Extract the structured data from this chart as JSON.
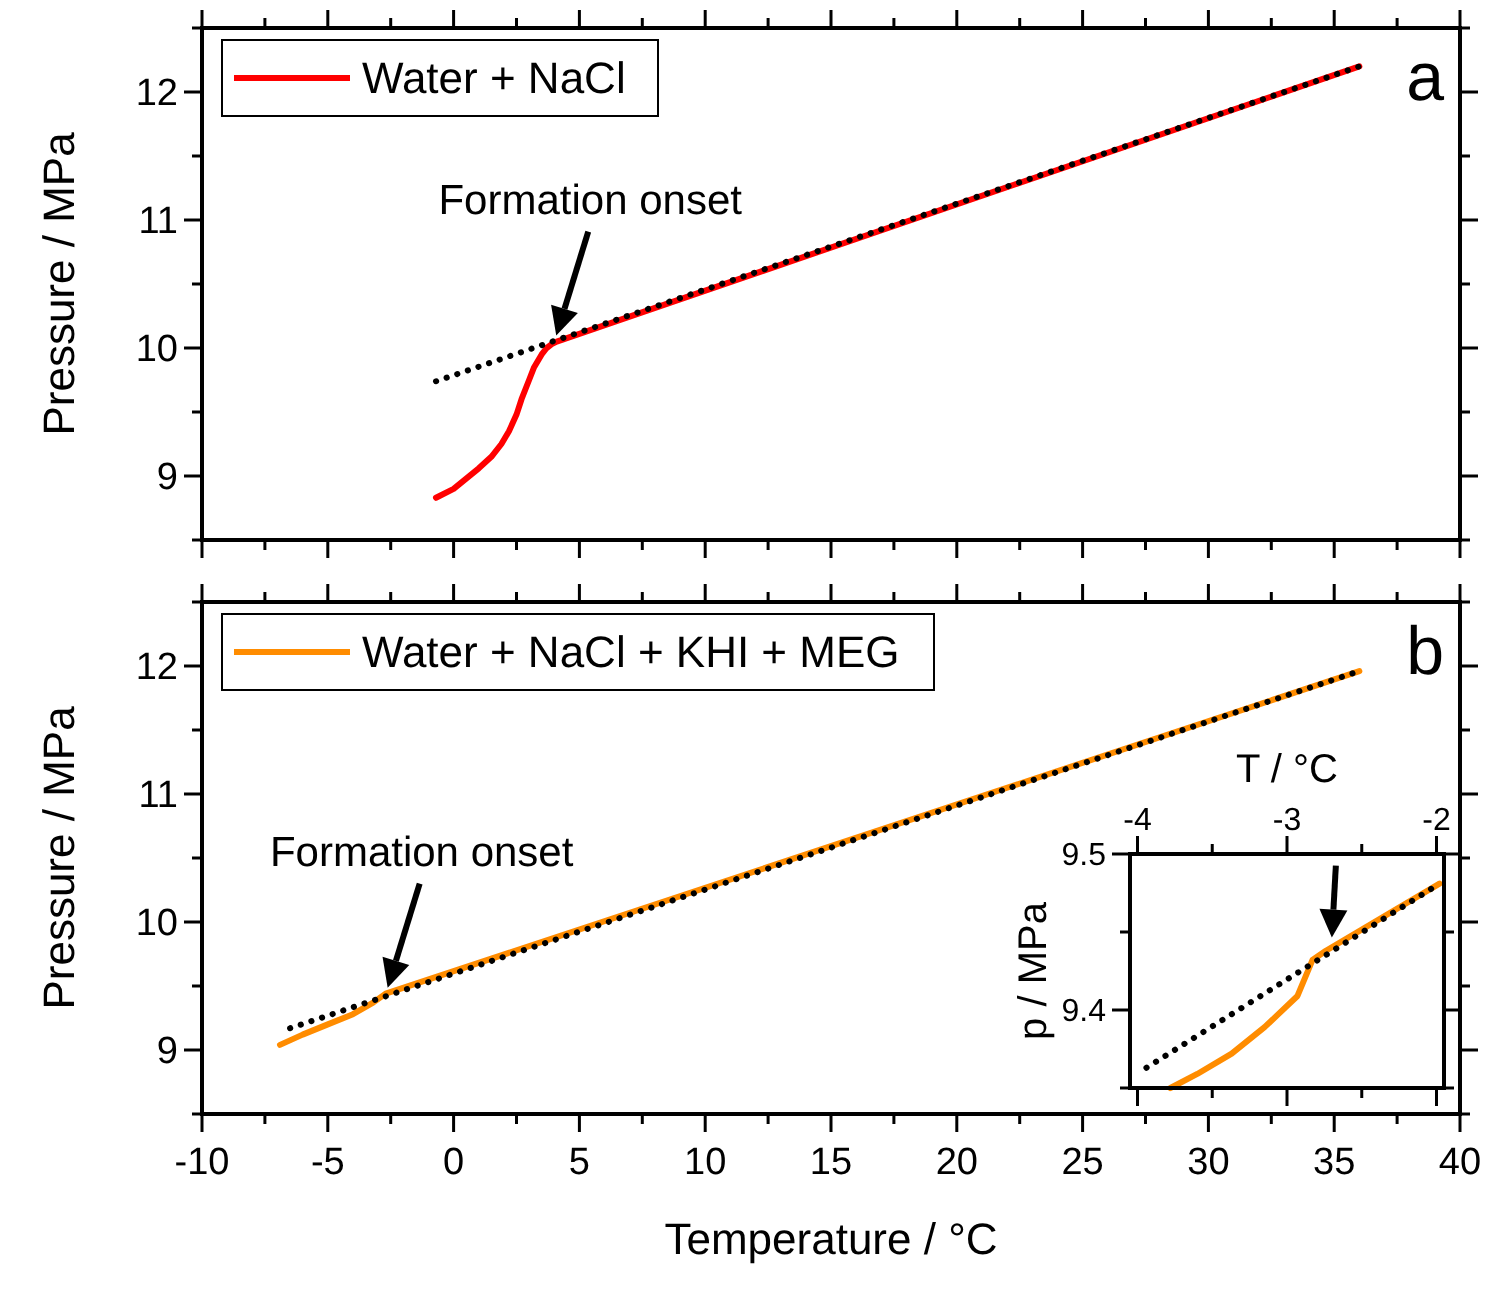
{
  "chart_data": [
    {
      "type": "line",
      "ylabel": "Pressure / MPa",
      "xlim": [
        -10,
        40
      ],
      "ylim": [
        8.5,
        12.5
      ],
      "xticks": [
        -10,
        {
          "value": -7.5,
          "label": null
        },
        -5,
        {
          "value": -2.5,
          "label": null
        },
        0,
        {
          "value": 2.5,
          "label": null
        },
        5,
        {
          "value": 7.5,
          "label": null
        },
        10,
        {
          "value": 12.5,
          "label": null
        },
        15,
        {
          "value": 17.5,
          "label": null
        },
        20,
        {
          "value": 22.5,
          "label": null
        },
        25,
        {
          "value": 27.5,
          "label": null
        },
        30,
        {
          "value": 32.5,
          "label": null
        },
        35,
        {
          "value": 37.5,
          "label": null
        },
        40
      ],
      "yticks": [
        {
          "value": 8.5,
          "label": null
        },
        9,
        {
          "value": 9.5,
          "label": null
        },
        10,
        {
          "value": 10.5,
          "label": null
        },
        11,
        {
          "value": 11.5,
          "label": null
        },
        12,
        {
          "value": 12.5,
          "label": null
        }
      ],
      "tick_labels": "y",
      "legend": "top left",
      "annotations": [
        "a",
        {
          "text": "Formation onset",
          "x": 4,
          "y": 10.05
        }
      ],
      "series": [
        {
          "name": "Water + NaCl",
          "color": "#ff0000",
          "x": [
            -0.7,
            0,
            0.5,
            1,
            1.5,
            1.9,
            2.2,
            2.5,
            2.7,
            3,
            3.2,
            3.5,
            3.7,
            3.9,
            4.1,
            36
          ],
          "values": [
            8.83,
            8.9,
            8.98,
            9.06,
            9.15,
            9.25,
            9.35,
            9.48,
            9.6,
            9.75,
            9.85,
            9.95,
            10.0,
            10.03,
            10.05,
            12.2
          ]
        },
        {
          "color": "#000000",
          "line_style": "dotted",
          "x": [
            -0.7,
            36
          ],
          "values": [
            9.74,
            12.2
          ]
        }
      ]
    },
    {
      "type": "line",
      "xlabel": "Temperature / °C",
      "ylabel": "Pressure / MPa",
      "xlim": [
        -10,
        40
      ],
      "ylim": [
        8.5,
        12.5
      ],
      "xticks": [
        -10,
        {
          "value": -7.5,
          "label": null
        },
        -5,
        {
          "value": -2.5,
          "label": null
        },
        0,
        {
          "value": 2.5,
          "label": null
        },
        5,
        {
          "value": 7.5,
          "label": null
        },
        10,
        {
          "value": 12.5,
          "label": null
        },
        15,
        {
          "value": 17.5,
          "label": null
        },
        20,
        {
          "value": 22.5,
          "label": null
        },
        25,
        {
          "value": 27.5,
          "label": null
        },
        30,
        {
          "value": 32.5,
          "label": null
        },
        35,
        {
          "value": 37.5,
          "label": null
        },
        40
      ],
      "yticks": [
        {
          "value": 8.5,
          "label": null
        },
        9,
        {
          "value": 9.5,
          "label": null
        },
        10,
        {
          "value": 10.5,
          "label": null
        },
        11,
        {
          "value": 11.5,
          "label": null
        },
        12,
        {
          "value": 12.5,
          "label": null
        }
      ],
      "legend": "top left",
      "annotations": [
        "b",
        {
          "text": "Formation onset",
          "x": -2.7,
          "y": 9.44
        }
      ],
      "series": [
        {
          "name": "Water + NaCl + KHI + MEG",
          "color": "#ff8c00",
          "x": [
            -6.9,
            -6,
            -5,
            -4,
            -3.2,
            -2.7,
            36
          ],
          "values": [
            9.04,
            9.12,
            9.2,
            9.28,
            9.37,
            9.44,
            11.96
          ]
        },
        {
          "color": "#000000",
          "line_style": "dotted",
          "x": [
            -6.5,
            36
          ],
          "values": [
            9.17,
            11.96
          ]
        }
      ]
    },
    {
      "type": "line",
      "xlabel": "T / °C",
      "ylabel": "p / MPa",
      "xlim": [
        -4.05,
        -1.95
      ],
      "ylim": [
        9.35,
        9.5
      ],
      "xticks": [
        -4,
        {
          "value": -3.5,
          "label": null
        },
        -3,
        {
          "value": -2.5,
          "label": null
        },
        -2
      ],
      "yticks": [
        {
          "value": 9.35,
          "label": null
        },
        9.4,
        {
          "value": 9.45,
          "label": null
        },
        9.5
      ],
      "series": [
        {
          "color": "#ff8c00",
          "x": [
            -3.78,
            -3.6,
            -3.37,
            -3.15,
            -2.93,
            -2.83,
            -2.74,
            -1.98
          ],
          "values": [
            9.35,
            9.359,
            9.372,
            9.389,
            9.409,
            9.432,
            9.438,
            9.481
          ]
        },
        {
          "color": "#000000",
          "line_style": "dotted",
          "x": [
            -3.94,
            -1.98
          ],
          "values": [
            9.363,
            9.481
          ]
        }
      ]
    }
  ]
}
